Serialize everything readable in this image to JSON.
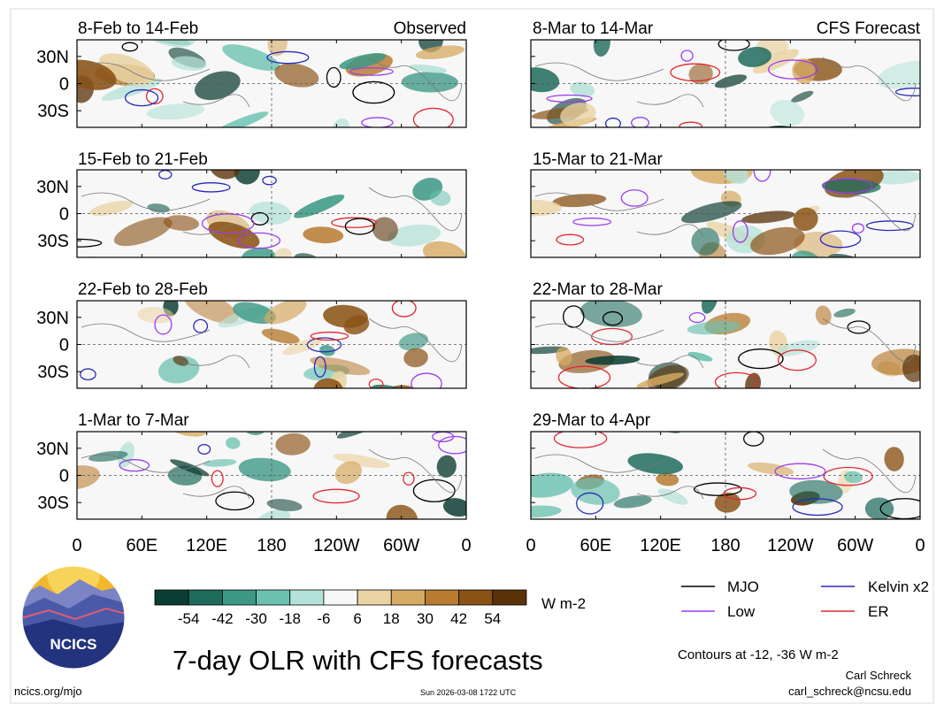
{
  "figure": {
    "title": "7-day OLR with CFS forecasts",
    "left_column_title": "Observed",
    "right_column_title": "CFS Forecast",
    "panels_left": [
      {
        "title": "8-Feb to 14-Feb"
      },
      {
        "title": "15-Feb to 21-Feb"
      },
      {
        "title": "22-Feb to 28-Feb"
      },
      {
        "title": "1-Mar to 7-Mar"
      }
    ],
    "panels_right": [
      {
        "title": "8-Mar to 14-Mar"
      },
      {
        "title": "15-Mar to 21-Mar"
      },
      {
        "title": "22-Mar to 28-Mar"
      },
      {
        "title": "29-Mar to 4-Apr"
      }
    ],
    "lat_ticks": [
      "30N",
      "0",
      "30S"
    ],
    "lon_ticks": [
      "0",
      "60E",
      "120E",
      "180",
      "120W",
      "60W",
      "0"
    ]
  },
  "colorbar": {
    "unit": "W m-2",
    "labels": [
      "-54",
      "-42",
      "-30",
      "-18",
      "-6",
      "6",
      "18",
      "30",
      "42",
      "54"
    ],
    "colors": [
      "#0b3d32",
      "#1e6b5c",
      "#3c9885",
      "#6cc2b0",
      "#b5e2d8",
      "#f7f7f7",
      "#ead3a3",
      "#d6aa62",
      "#b87b30",
      "#8a5215",
      "#5a3208"
    ]
  },
  "legend": {
    "items": [
      {
        "label": "MJO",
        "color": "#000000"
      },
      {
        "label": "Kelvin x2",
        "color": "#2a2ab8"
      },
      {
        "label": "Low",
        "color": "#9b3df0"
      },
      {
        "label": "ER",
        "color": "#e0282e"
      }
    ],
    "contours_note": "Contours at -12, -36 W m-2"
  },
  "logo": {
    "text": "NCICS"
  },
  "footer": {
    "site": "ncics.org/mjo",
    "timestamp": "Sun 2026-03-08 1722 UTC",
    "author": "Carl Schreck",
    "email": "carl_schreck@ncsu.edu"
  }
}
